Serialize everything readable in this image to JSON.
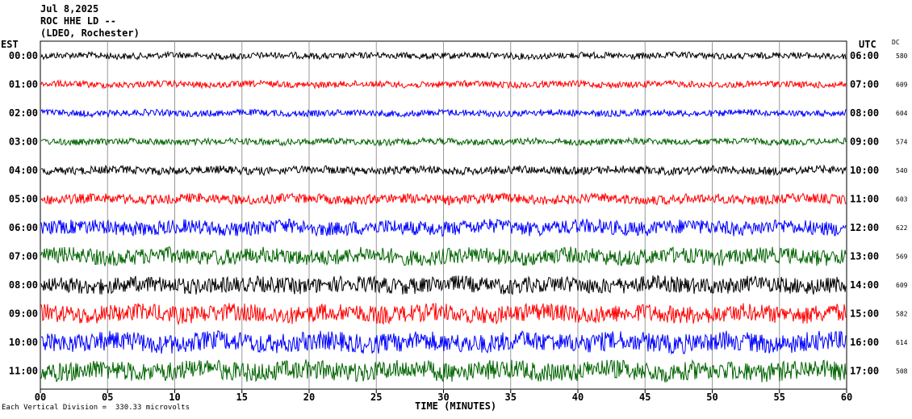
{
  "header": {
    "date": "Jul 8,2025",
    "station": "ROC HHE LD --",
    "network": "(LDEO, Rochester)"
  },
  "left_tz": "EST",
  "right_tz": "UTC",
  "dc_label": "DC",
  "footer": "Each Vertical Division =  330.33 microvolts",
  "chart_data": {
    "type": "line",
    "xlabel": "TIME (MINUTES)",
    "xlim": [
      0,
      60
    ],
    "xticks": [
      "00",
      "05",
      "10",
      "15",
      "20",
      "25",
      "30",
      "35",
      "40",
      "45",
      "50",
      "55",
      "60"
    ],
    "colors": {
      "black": "#000000",
      "red": "#ff0000",
      "blue": "#0000ff",
      "green": "#006400"
    },
    "rows": [
      {
        "left": "00:00",
        "right": "06:00",
        "dc": "580",
        "color": "#000000",
        "noise": 4
      },
      {
        "left": "01:00",
        "right": "07:00",
        "dc": "609",
        "color": "#ff0000",
        "noise": 4
      },
      {
        "left": "02:00",
        "right": "08:00",
        "dc": "604",
        "color": "#0000ff",
        "noise": 4
      },
      {
        "left": "03:00",
        "right": "09:00",
        "dc": "574",
        "color": "#006400",
        "noise": 4
      },
      {
        "left": "04:00",
        "right": "10:00",
        "dc": "540",
        "color": "#000000",
        "noise": 5
      },
      {
        "left": "05:00",
        "right": "11:00",
        "dc": "603",
        "color": "#ff0000",
        "noise": 6
      },
      {
        "left": "06:00",
        "right": "12:00",
        "dc": "622",
        "color": "#0000ff",
        "noise": 9
      },
      {
        "left": "07:00",
        "right": "13:00",
        "dc": "569",
        "color": "#006400",
        "noise": 10
      },
      {
        "left": "08:00",
        "right": "14:00",
        "dc": "609",
        "color": "#000000",
        "noise": 10
      },
      {
        "left": "09:00",
        "right": "15:00",
        "dc": "582",
        "color": "#ff0000",
        "noise": 11
      },
      {
        "left": "10:00",
        "right": "16:00",
        "dc": "614",
        "color": "#0000ff",
        "noise": 12
      },
      {
        "left": "11:00",
        "right": "17:00",
        "dc": "508",
        "color": "#006400",
        "noise": 12
      }
    ]
  }
}
